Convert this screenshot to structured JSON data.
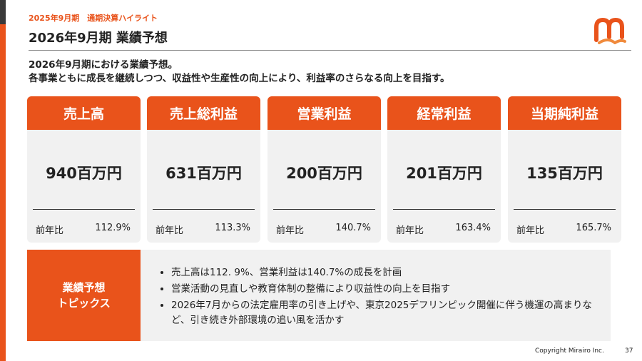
{
  "header": {
    "section": "2025年9月期　通期決算ハイライト",
    "title": "2026年9月期 業績予想"
  },
  "intro": [
    "2026年9月期における業績予想。",
    "各事業ともに成長を継続しつつ、収益性や生産性の向上により、利益率のさらなる向上を目指す。"
  ],
  "cards": [
    {
      "label": "売上高",
      "value": "940百万円",
      "yoy_label": "前年比",
      "yoy": "112.9%"
    },
    {
      "label": "売上総利益",
      "value": "631百万円",
      "yoy_label": "前年比",
      "yoy": "113.3%"
    },
    {
      "label": "営業利益",
      "value": "200百万円",
      "yoy_label": "前年比",
      "yoy": "140.7%"
    },
    {
      "label": "経常利益",
      "value": "201百万円",
      "yoy_label": "前年比",
      "yoy": "163.4%"
    },
    {
      "label": "当期純利益",
      "value": "135百万円",
      "yoy_label": "前年比",
      "yoy": "165.7%"
    }
  ],
  "topics": {
    "title": [
      "業績予想",
      "トピックス"
    ],
    "items": [
      "売上高は112. 9%、営業利益は140.7%の成長を計画",
      "営業活動の見直しや教育体制の整備により収益性の向上を目指す",
      "2026年7月からの法定雇用率の引き上げや、東京2025デフリンピック開催に伴う機運の高まりなど、引き続き外部環境の追い風を活かす"
    ]
  },
  "footer": {
    "copyright": "Copyright Mirairo Inc.",
    "page": "37"
  }
}
